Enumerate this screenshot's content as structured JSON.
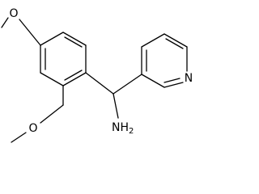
{
  "atoms": [
    {
      "label": "O"
    },
    {
      "label": "O"
    },
    {
      "label": "NH",
      "subscript": "2"
    },
    {
      "label": "N"
    }
  ]
}
